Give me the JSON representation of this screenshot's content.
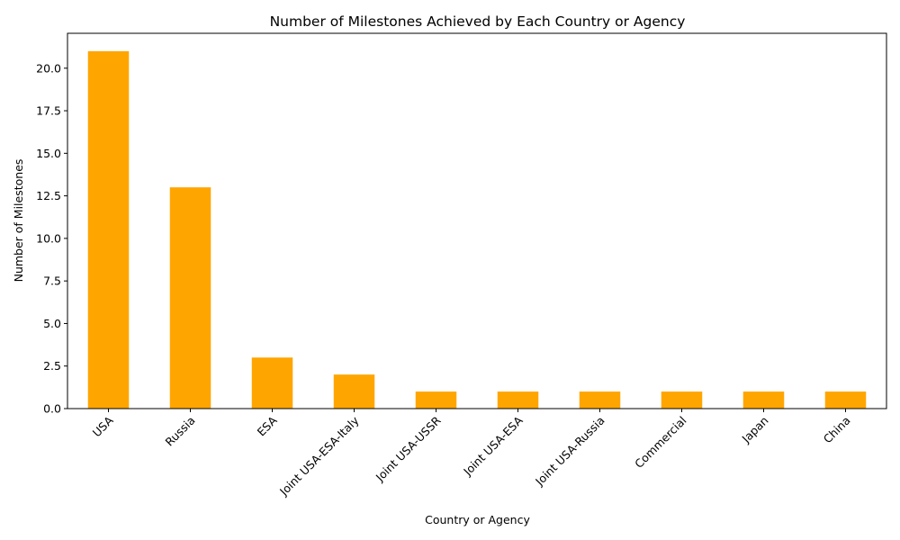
{
  "chart_data": {
    "type": "bar",
    "title": "Number of Milestones Achieved by Each Country or Agency",
    "xlabel": "Country or Agency",
    "ylabel": "Number of Milestones",
    "categories": [
      "USA",
      "Russia",
      "ESA",
      "Joint USA-ESA-Italy",
      "Joint USA-USSR",
      "Joint USA-ESA",
      "Joint USA-Russia",
      "Commercial",
      "Japan",
      "China"
    ],
    "values": [
      21,
      13,
      3,
      2,
      1,
      1,
      1,
      1,
      1,
      1
    ],
    "ylim": [
      0,
      22.05
    ],
    "yticks": [
      0.0,
      2.5,
      5.0,
      7.5,
      10.0,
      12.5,
      15.0,
      17.5,
      20.0
    ],
    "ytick_labels": [
      "0.0",
      "2.5",
      "5.0",
      "7.5",
      "10.0",
      "12.5",
      "15.0",
      "17.5",
      "20.0"
    ],
    "bar_color": "#ffa500",
    "grid": false,
    "legend": "none"
  }
}
